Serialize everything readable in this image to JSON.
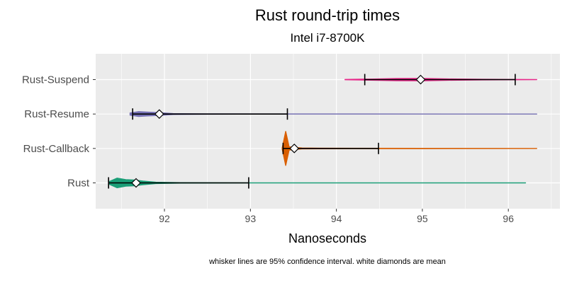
{
  "chart_data": {
    "type": "violin",
    "title": "Rust  round-trip times",
    "subtitle": "Intel i7-8700K",
    "xlabel": "Nanoseconds",
    "ylabel": "",
    "caption": "whisker lines are 95% confidence interval. white diamonds are mean",
    "xlim": [
      91.2,
      96.6
    ],
    "x_ticks": [
      92,
      93,
      94,
      95,
      96
    ],
    "grid": true,
    "legend": "none",
    "categories": [
      "Rust",
      "Rust-Callback",
      "Rust-Resume",
      "Rust-Suspend"
    ],
    "series": [
      {
        "category": "Rust",
        "color": "#1b9e77",
        "min": 91.33,
        "max": 96.2,
        "mean": 91.67,
        "ci": [
          91.35,
          92.98
        ],
        "density": [
          [
            91.35,
            0.2
          ],
          [
            91.45,
            0.9
          ],
          [
            91.55,
            0.6
          ],
          [
            91.65,
            0.55
          ],
          [
            91.75,
            0.35
          ],
          [
            91.9,
            0.12
          ],
          [
            92.2,
            0.04
          ],
          [
            93.0,
            0.01
          ],
          [
            96.2,
            0.0
          ]
        ]
      },
      {
        "category": "Rust-Callback",
        "color": "#d95f02",
        "min": 93.37,
        "max": 96.33,
        "mean": 93.51,
        "ci": [
          93.38,
          94.49
        ],
        "density": [
          [
            93.37,
            0.1
          ],
          [
            93.41,
            3.2
          ],
          [
            93.45,
            0.3
          ],
          [
            93.6,
            0.08
          ],
          [
            93.8,
            0.06
          ],
          [
            94.2,
            0.03
          ],
          [
            95.0,
            0.02
          ],
          [
            96.33,
            0.0
          ]
        ]
      },
      {
        "category": "Rust-Resume",
        "color": "#7570b3",
        "min": 91.6,
        "max": 96.33,
        "mean": 91.94,
        "ci": [
          91.63,
          93.43
        ],
        "density": [
          [
            91.6,
            0.2
          ],
          [
            91.7,
            0.45
          ],
          [
            91.8,
            0.35
          ],
          [
            91.95,
            0.25
          ],
          [
            92.1,
            0.08
          ],
          [
            92.5,
            0.03
          ],
          [
            93.4,
            0.01
          ],
          [
            96.33,
            0.0
          ]
        ]
      },
      {
        "category": "Rust-Suspend",
        "color": "#e7298a",
        "min": 94.1,
        "max": 96.33,
        "mean": 94.98,
        "ci": [
          94.33,
          96.08
        ],
        "density": [
          [
            94.1,
            0.02
          ],
          [
            94.4,
            0.1
          ],
          [
            94.7,
            0.2
          ],
          [
            95.0,
            0.22
          ],
          [
            95.3,
            0.12
          ],
          [
            95.7,
            0.05
          ],
          [
            96.1,
            0.02
          ],
          [
            96.33,
            0.0
          ]
        ]
      }
    ]
  }
}
